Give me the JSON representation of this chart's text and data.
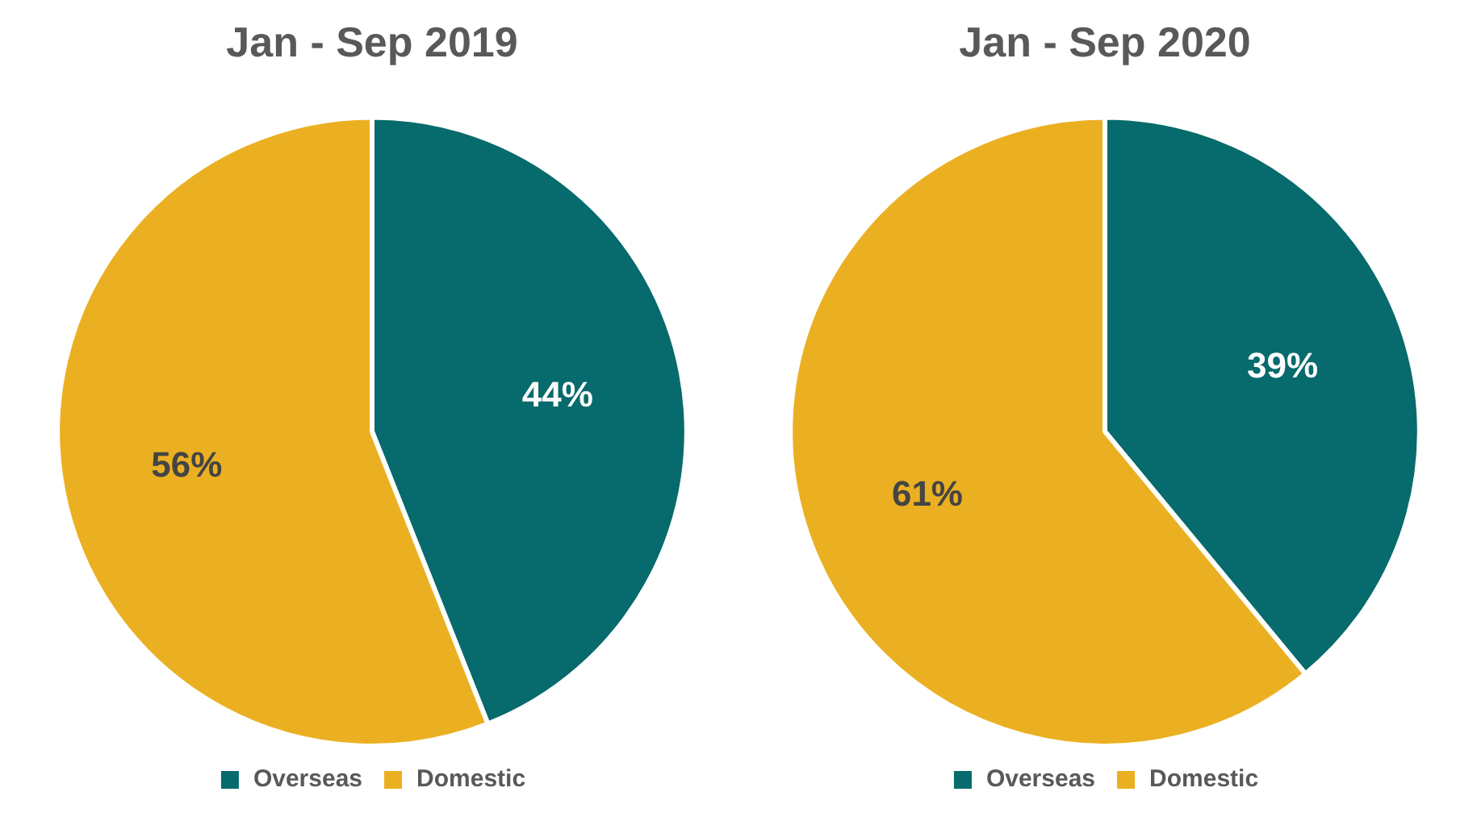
{
  "chart_data": [
    {
      "type": "pie",
      "title": "Jan - Sep 2019",
      "categories": [
        "Overseas",
        "Domestic"
      ],
      "values": [
        44,
        56
      ],
      "colors": [
        "#076a6c",
        "#ebb022"
      ],
      "value_labels": [
        "44%",
        "56%"
      ],
      "legend": "bottom"
    },
    {
      "type": "pie",
      "title": "Jan - Sep 2020",
      "categories": [
        "Overseas",
        "Domestic"
      ],
      "values": [
        39,
        61
      ],
      "colors": [
        "#076a6c",
        "#ebb022"
      ],
      "value_labels": [
        "39%",
        "61%"
      ],
      "legend": "bottom"
    }
  ]
}
